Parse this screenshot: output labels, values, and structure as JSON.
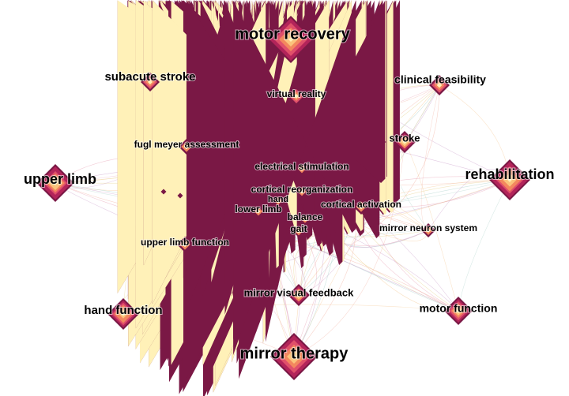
{
  "nodes": [
    {
      "label": "motor recovery"
    },
    {
      "label": "subacute stroke"
    },
    {
      "label": "clinical feasibility"
    },
    {
      "label": "virtual reality"
    },
    {
      "label": "fugl meyer assessment"
    },
    {
      "label": "stroke"
    },
    {
      "label": "upper limb"
    },
    {
      "label": "rehabilitation"
    },
    {
      "label": "electrical stimulation"
    },
    {
      "label": "cortical reorganization"
    },
    {
      "label": "hand"
    },
    {
      "label": "lower limb"
    },
    {
      "label": "cortical activation"
    },
    {
      "label": "balance"
    },
    {
      "label": "gait"
    },
    {
      "label": "mirror neuron system"
    },
    {
      "label": "upper limb function"
    },
    {
      "label": "mirror visual feedback"
    },
    {
      "label": "hand function"
    },
    {
      "label": "motor function"
    },
    {
      "label": "mirror therapy"
    }
  ]
}
